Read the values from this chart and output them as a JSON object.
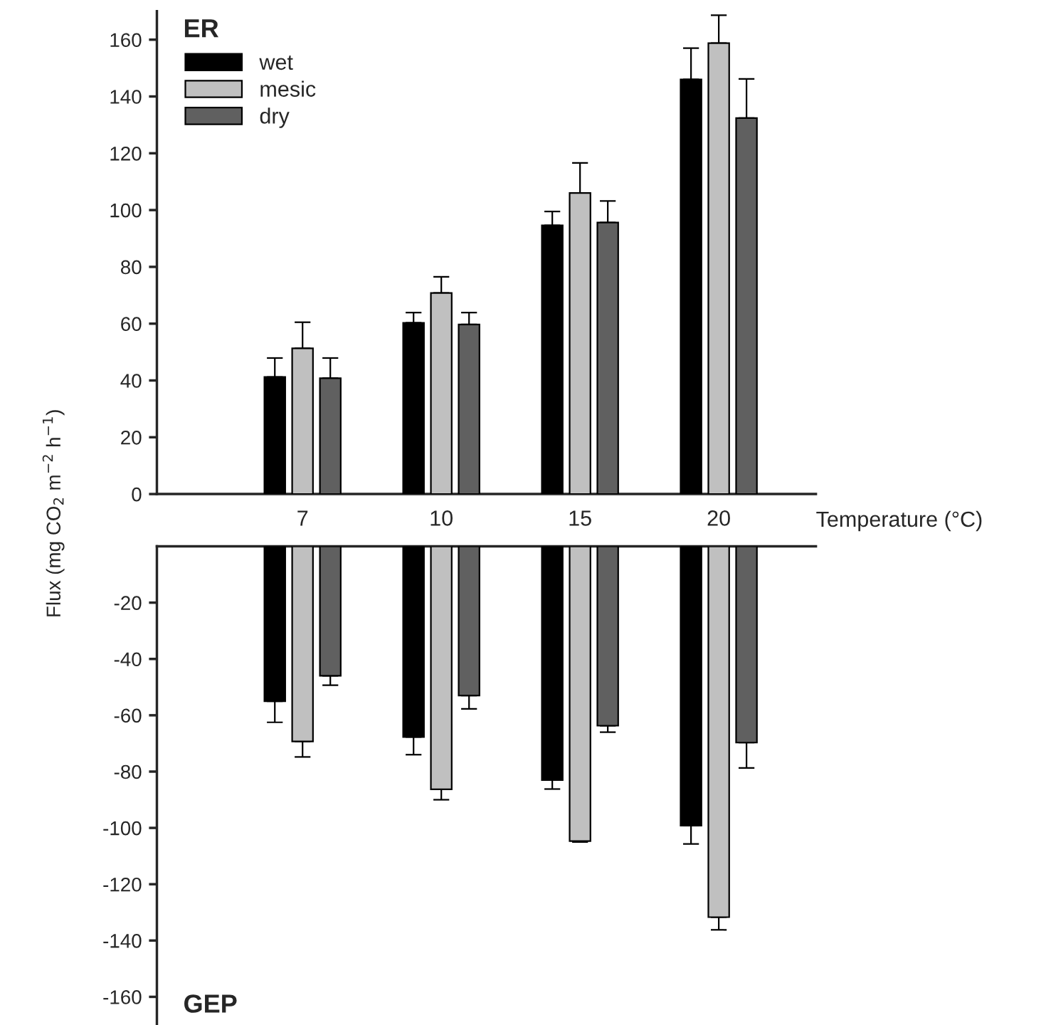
{
  "chart_data": [
    {
      "type": "bar",
      "title": "ER",
      "xlabel": "Temperature (°C)",
      "ylabel": "Flux (mg CO$_{2}$ m$^{−2}$ h$^{−1}$)",
      "categories": [
        "7",
        "10",
        "15",
        "20"
      ],
      "ylim": [
        0,
        170
      ],
      "yticks": [
        0,
        20,
        40,
        60,
        80,
        100,
        120,
        140,
        160
      ],
      "legend": "top left",
      "series": [
        {
          "name": "wet",
          "color": "#000000",
          "values": [
            41.2,
            60.3,
            94.6,
            146
          ],
          "errors": [
            [
              41.2,
              47.9
            ],
            [
              60.3,
              63.9
            ],
            [
              94.6,
              99.5
            ],
            [
              146,
              157
            ]
          ]
        },
        {
          "name": "mesic",
          "color": "#c0c0c0",
          "values": [
            51.3,
            70.8,
            106,
            158.8
          ],
          "errors": [
            [
              51.3,
              60.5
            ],
            [
              70.8,
              76.5
            ],
            [
              106,
              116.6
            ],
            [
              158.8,
              168.6
            ]
          ]
        },
        {
          "name": "dry",
          "color": "#606060",
          "values": [
            40.8,
            59.7,
            95.6,
            132.4
          ],
          "errors": [
            [
              40.8,
              47.9
            ],
            [
              59.7,
              63.9
            ],
            [
              95.6,
              103.2
            ],
            [
              132.4,
              146.2
            ]
          ]
        }
      ]
    },
    {
      "type": "bar",
      "title": "GEP",
      "categories": [
        "7",
        "10",
        "15",
        "20"
      ],
      "ylim": [
        -170,
        0
      ],
      "yticks": [
        -20,
        -40,
        -60,
        -80,
        -100,
        -120,
        -140,
        -160
      ],
      "tick_labels": "y",
      "series": [
        {
          "color": "#000000",
          "values": [
            -55,
            -67.7,
            -83,
            -99.2
          ],
          "errors": [
            [
              -62.5,
              -55
            ],
            [
              -74,
              -67.7
            ],
            [
              -86.2,
              -83
            ],
            [
              -105.7,
              -99.2
            ]
          ]
        },
        {
          "color": "#c0c0c0",
          "values": [
            -69.3,
            -86.3,
            -104.7,
            -131.7
          ],
          "errors": [
            [
              -74.8,
              -69.3
            ],
            [
              -90,
              -86.3
            ],
            [
              -105,
              -104.7
            ],
            [
              -136.2,
              -131.7
            ]
          ]
        },
        {
          "color": "#606060",
          "values": [
            -46,
            -53,
            -63.7,
            -69.7
          ],
          "errors": [
            [
              -49.3,
              -46
            ],
            [
              -57.7,
              -53
            ],
            [
              -66,
              -63.7
            ],
            [
              -78.7,
              -69.7
            ]
          ]
        }
      ]
    }
  ]
}
